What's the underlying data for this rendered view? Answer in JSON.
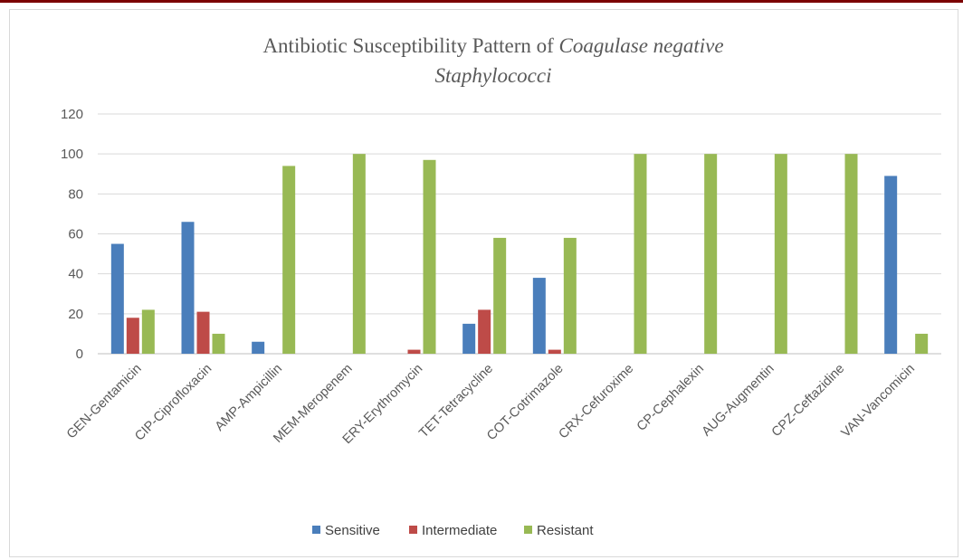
{
  "chart_data": {
    "type": "bar",
    "title": "Antibiotic Susceptibility Pattern of",
    "title_italic_1": "Coagulase negative",
    "title_italic_2": "Staphylococci",
    "xlabel": "",
    "ylabel": "",
    "ylim": [
      0,
      120
    ],
    "yticks": [
      "0",
      "20",
      "40",
      "60",
      "80",
      "100",
      "120"
    ],
    "grid": true,
    "legend_position": "bottom",
    "categories": [
      "GEN-Gentamicin",
      "CIP-Ciprofloxacin",
      "AMP-Ampicillin",
      "MEM-Meropenem",
      "ERY-Erythromycin",
      "TET-Tetracycline",
      "COT-Cotrimazole",
      "CRX-Cefuroxime",
      "CP-Cephalexin",
      "AUG-Augmentin",
      "CPZ-Ceftazidine",
      "VAN-Vancomicin"
    ],
    "series": [
      {
        "name": "Sensitive",
        "color": "#4a7ebb",
        "values": [
          55,
          66,
          6,
          0,
          0,
          15,
          38,
          0,
          0,
          0,
          0,
          89
        ]
      },
      {
        "name": "Intermediate",
        "color": "#be4b48",
        "values": [
          18,
          21,
          0,
          0,
          2,
          22,
          2,
          0,
          0,
          0,
          0,
          0
        ]
      },
      {
        "name": "Resistant",
        "color": "#98b954",
        "values": [
          22,
          10,
          94,
          100,
          97,
          58,
          58,
          100,
          100,
          100,
          100,
          10
        ]
      }
    ]
  }
}
